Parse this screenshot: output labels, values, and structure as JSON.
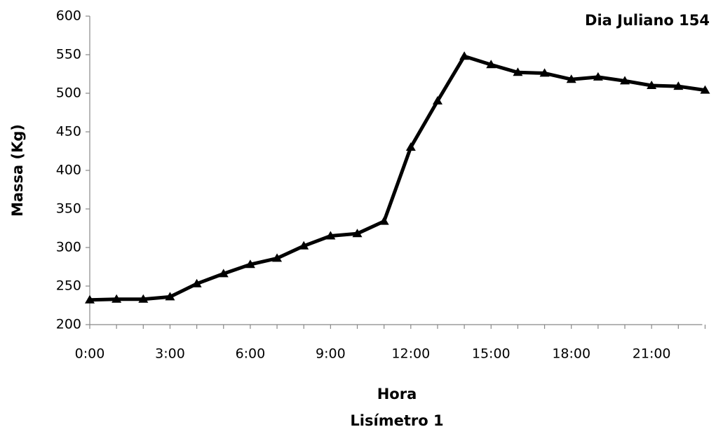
{
  "chart_data": {
    "type": "line",
    "title": "Dia Juliano 154",
    "x_label": "Hora",
    "caption": "Lisímetro 1",
    "y_label": "Massa (Kg)",
    "categories": [
      "0:00",
      null,
      null,
      "3:00",
      null,
      null,
      "6:00",
      null,
      null,
      "9:00",
      null,
      null,
      "12:00",
      null,
      null,
      "15:00",
      null,
      null,
      "18:00",
      null,
      null,
      "21:00",
      null,
      null
    ],
    "series": [
      {
        "name": "Massa",
        "color": "#000000",
        "values": [
          232,
          233,
          233,
          236,
          253,
          266,
          278,
          286,
          302,
          315,
          318,
          334,
          430,
          490,
          548,
          537,
          527,
          526,
          518,
          521,
          516,
          510,
          509,
          504
        ]
      }
    ],
    "ylim": [
      200,
      600
    ],
    "yticks": [
      200,
      250,
      300,
      350,
      400,
      450,
      500,
      550,
      600
    ],
    "grid": false
  }
}
